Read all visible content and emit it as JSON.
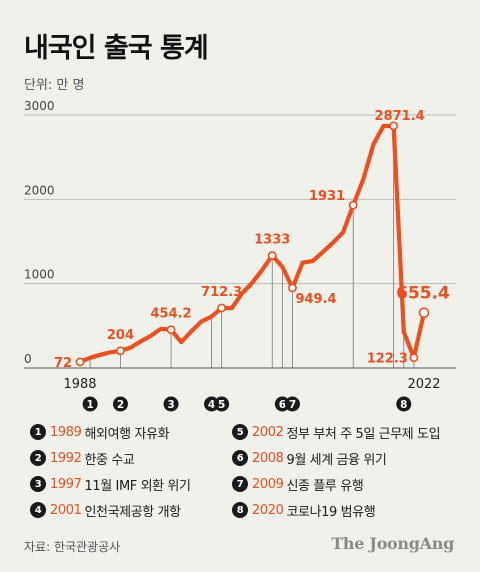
{
  "title": "내국인 출국 통계",
  "unit_label": "단위: 만 명",
  "colors": {
    "line": "#ee4f1f",
    "marker_label": "#ee4f1f",
    "badge": "#1a1a1a",
    "grid": "#bcbcbc",
    "background": "#f1f1ec"
  },
  "chart_data": {
    "type": "line",
    "title": "내국인 출국 통계",
    "unit": "만 명",
    "xlim": [
      1988,
      2022
    ],
    "ylim": [
      0,
      3000
    ],
    "x_ticks": [
      1988,
      2022
    ],
    "y_ticks": [
      0,
      1000,
      2000,
      3000
    ],
    "grid": true,
    "series": [
      {
        "points": [
          [
            1988,
            72
          ],
          [
            1989,
            121
          ],
          [
            1990,
            156
          ],
          [
            1991,
            186
          ],
          [
            1992,
            204
          ],
          [
            1993,
            242
          ],
          [
            1994,
            315
          ],
          [
            1995,
            382
          ],
          [
            1996,
            465
          ],
          [
            1997,
            454.2
          ],
          [
            1998,
            307
          ],
          [
            1999,
            434
          ],
          [
            2000,
            551
          ],
          [
            2001,
            608
          ],
          [
            2002,
            712.3
          ],
          [
            2003,
            709
          ],
          [
            2004,
            883
          ],
          [
            2005,
            1008
          ],
          [
            2006,
            1161
          ],
          [
            2007,
            1333
          ],
          [
            2008,
            1200
          ],
          [
            2009,
            949.4
          ],
          [
            2010,
            1249
          ],
          [
            2011,
            1269
          ],
          [
            2012,
            1374
          ],
          [
            2013,
            1485
          ],
          [
            2014,
            1609
          ],
          [
            2015,
            1931
          ],
          [
            2016,
            2238
          ],
          [
            2017,
            2650
          ],
          [
            2018,
            2870
          ],
          [
            2019,
            2871.4
          ],
          [
            2020,
            428
          ],
          [
            2021,
            122.3
          ],
          [
            2022,
            655.4
          ]
        ]
      }
    ],
    "value_labels": [
      {
        "year": 1988,
        "text": "72"
      },
      {
        "year": 1992,
        "text": "204"
      },
      {
        "year": 1997,
        "text": "454.2"
      },
      {
        "year": 2002,
        "text": "712.3"
      },
      {
        "year": 2007,
        "text": "1333"
      },
      {
        "year": 2009,
        "text": "949.4"
      },
      {
        "year": 2015,
        "text": "1931"
      },
      {
        "year": 2019,
        "text": "2871.4"
      },
      {
        "year": 2021,
        "text": "122.3"
      },
      {
        "year": 2022,
        "text": "655.4"
      }
    ],
    "events": [
      {
        "num": "1",
        "year": 1989
      },
      {
        "num": "2",
        "year": 1992
      },
      {
        "num": "3",
        "year": 1997
      },
      {
        "num": "4",
        "year": 2001
      },
      {
        "num": "5",
        "year": 2002
      },
      {
        "num": "6",
        "year": 2008
      },
      {
        "num": "7",
        "year": 2009
      },
      {
        "num": "8",
        "year": 2020
      }
    ]
  },
  "legend": [
    {
      "num": "1",
      "year": "1989",
      "text": "해외여행 자유화"
    },
    {
      "num": "2",
      "year": "1992",
      "text": "한중 수교"
    },
    {
      "num": "3",
      "year": "1997",
      "text": "11월 IMF 외환 위기"
    },
    {
      "num": "4",
      "year": "2001",
      "text": "인천국제공항 개항"
    },
    {
      "num": "5",
      "year": "2002",
      "text": "정부 부처 주 5일 근무제 도입"
    },
    {
      "num": "6",
      "year": "2008",
      "text": "9월 세계 금융 위기"
    },
    {
      "num": "7",
      "year": "2009",
      "text": "신종 플루 유행"
    },
    {
      "num": "8",
      "year": "2020",
      "text": "코로나19 범유행"
    }
  ],
  "source": "자료: 한국관광공사",
  "brand": "The JoongAng"
}
